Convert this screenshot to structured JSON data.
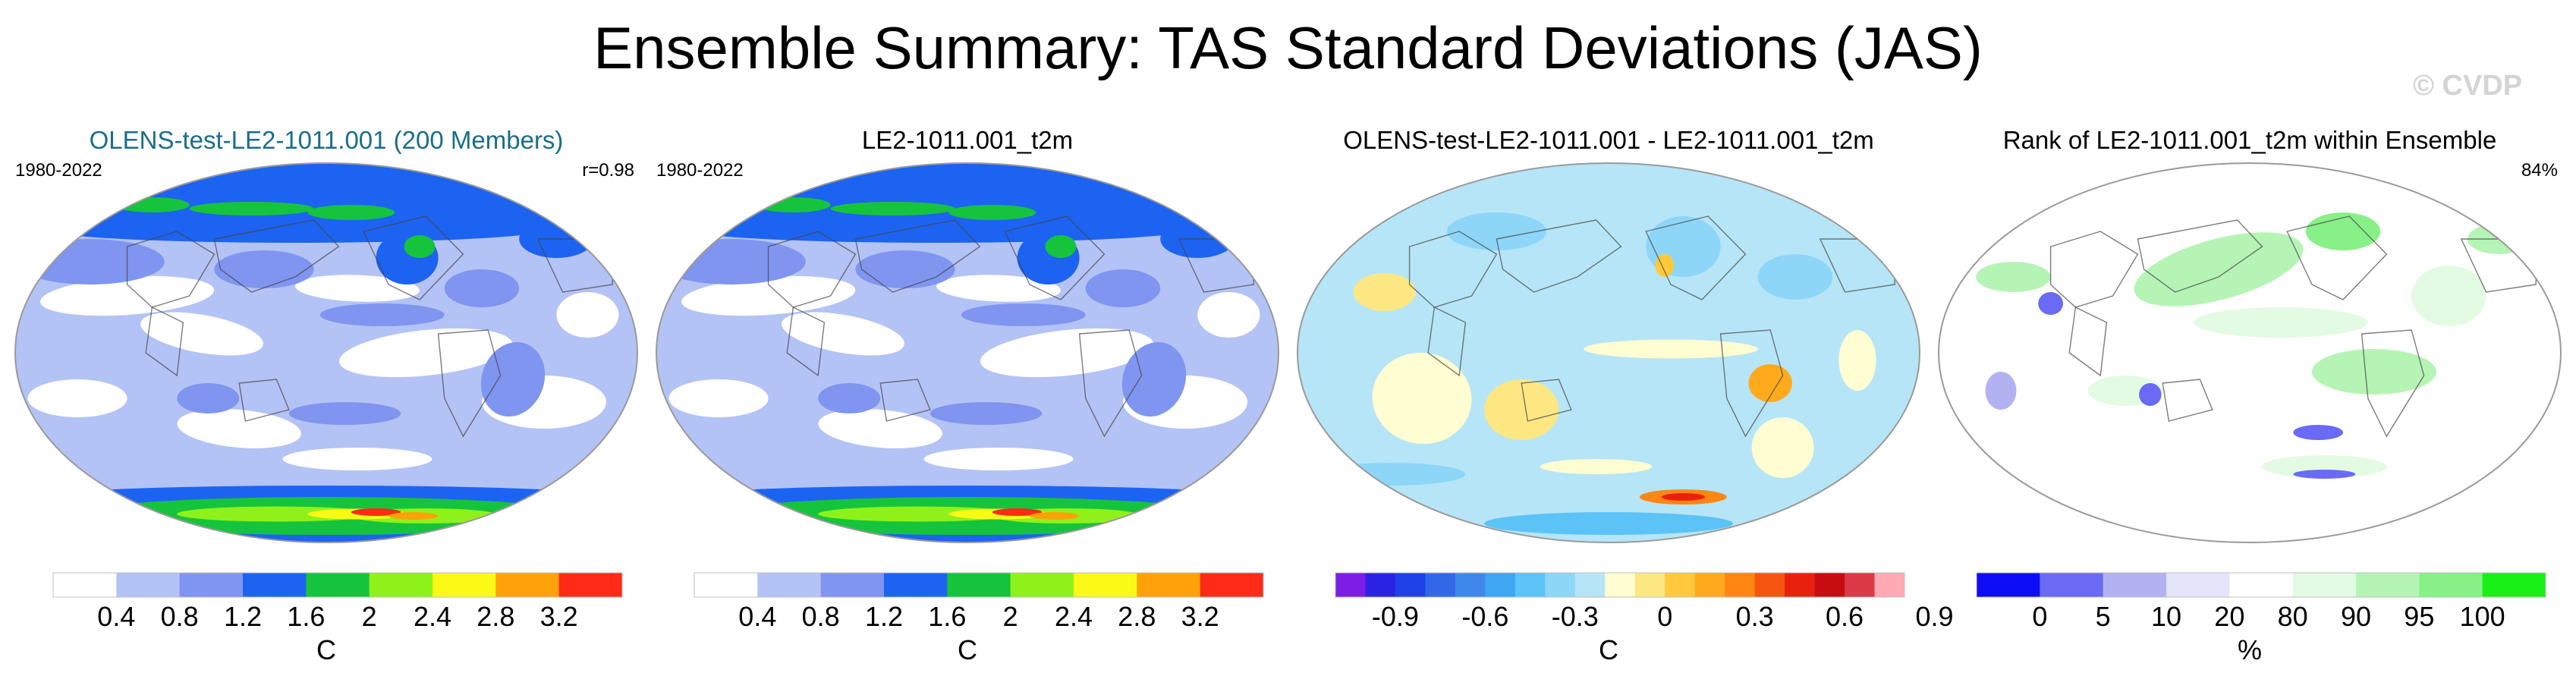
{
  "title": "Ensemble Summary: TAS Standard Deviations (JAS)",
  "watermark": "© CVDP",
  "chart_data": [
    {
      "type": "heatmap",
      "title": "OLENS-test-LE2-1011.001 (200 Members)",
      "title_color": "#1a6d8a",
      "period": "1980-2022",
      "stat": "r=0.98",
      "units": "C",
      "scheme": "std",
      "colorbar": {
        "colors": [
          "#ffffff",
          "#b4c3f5",
          "#7f95f0",
          "#1d63f2",
          "#15c43c",
          "#8ef21a",
          "#fbfa17",
          "#ffa209",
          "#ff2a17"
        ],
        "ticks": [
          "0.4",
          "0.8",
          "1.2",
          "1.6",
          "2",
          "2.4",
          "2.8",
          "3.2"
        ]
      }
    },
    {
      "type": "heatmap",
      "title": "LE2-1011.001_t2m",
      "title_color": "#000000",
      "period": "1980-2022",
      "stat": "",
      "units": "C",
      "scheme": "std",
      "colorbar": {
        "colors": [
          "#ffffff",
          "#b4c3f5",
          "#7f95f0",
          "#1d63f2",
          "#15c43c",
          "#8ef21a",
          "#fbfa17",
          "#ffa209",
          "#ff2a17"
        ],
        "ticks": [
          "0.4",
          "0.8",
          "1.2",
          "1.6",
          "2",
          "2.4",
          "2.8",
          "3.2"
        ]
      }
    },
    {
      "type": "heatmap",
      "title": "OLENS-test-LE2-1011.001 - LE2-1011.001_t2m",
      "title_color": "#000000",
      "period": "",
      "stat": "",
      "units": "C",
      "scheme": "diff",
      "colorbar": {
        "colors": [
          "#7c1ee6",
          "#2b23e3",
          "#1e42e8",
          "#3267e8",
          "#3f88eb",
          "#3fa6f2",
          "#5cc3f7",
          "#8dd6f8",
          "#b6e5f7",
          "#fffdd1",
          "#fde783",
          "#ffc93b",
          "#ffaa1c",
          "#ff8612",
          "#f65510",
          "#e8210e",
          "#c70d10",
          "#db3a47",
          "#fdaab4"
        ],
        "ticks": [
          "-0.9",
          "-0.6",
          "-0.3",
          "0",
          "0.3",
          "0.6",
          "0.9"
        ]
      }
    },
    {
      "type": "heatmap",
      "title": "Rank of LE2-1011.001_t2m within Ensemble",
      "title_color": "#000000",
      "period": "",
      "stat": "84%",
      "units": "%",
      "scheme": "rank",
      "colorbar": {
        "colors": [
          "#0d0df7",
          "#6a6af4",
          "#b2b2f3",
          "#e4e4fb",
          "#ffffff",
          "#e3fbe3",
          "#b6f4b6",
          "#87f087",
          "#18f018"
        ],
        "ticks": [
          "0",
          "5",
          "10",
          "20",
          "80",
          "90",
          "95",
          "100"
        ]
      }
    }
  ]
}
